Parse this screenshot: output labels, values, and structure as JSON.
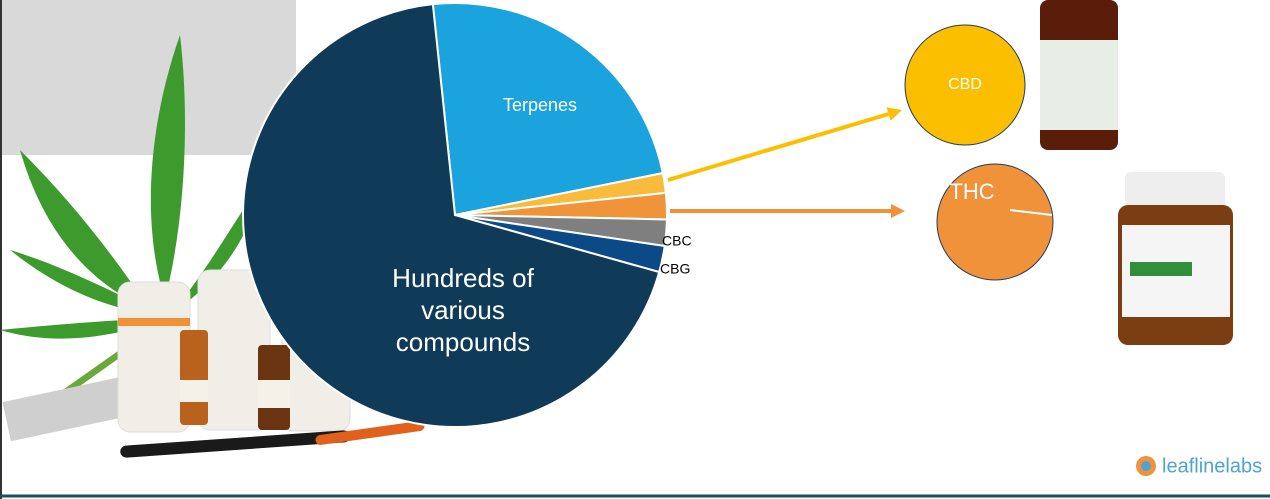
{
  "chart_data": {
    "type": "pie",
    "categories": [
      "Terpenes",
      null,
      null,
      "CBC",
      "CBG",
      "Hundreds of various compounds"
    ],
    "values": [
      23.5,
      1.5,
      2,
      2,
      2,
      69
    ],
    "colors": [
      "#1aa3dc",
      "#f9bb3c",
      "#f0943a",
      "#7f7f7f",
      "#0b4a87",
      "#0f3a58"
    ],
    "callouts": [
      {
        "label": "CBD",
        "color": "#fcbf00"
      },
      {
        "label": "THC",
        "color": "#f0923a"
      }
    ]
  },
  "logo": "leaflinelabs"
}
